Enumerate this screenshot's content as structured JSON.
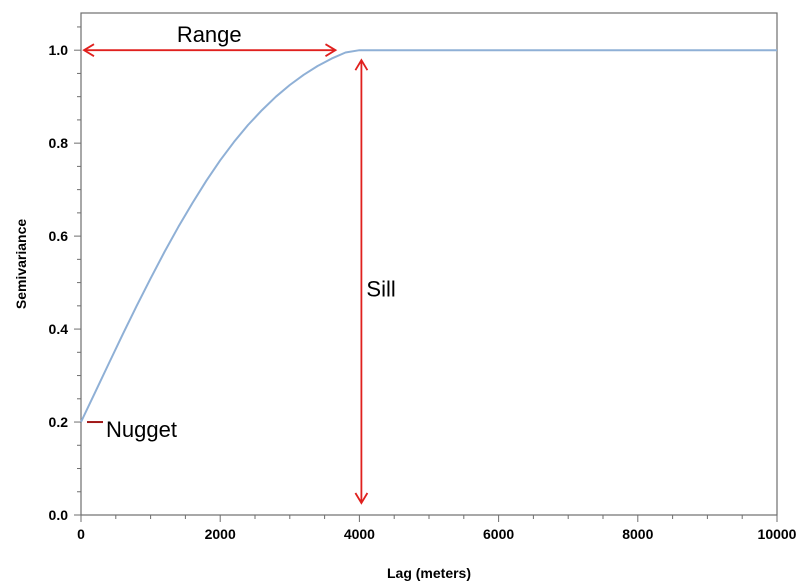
{
  "chart_data": {
    "type": "line",
    "xlabel": "Lag (meters)",
    "ylabel": "Semivariance",
    "xlim": [
      0,
      10000
    ],
    "ylim": [
      0,
      1.08
    ],
    "x_ticks": [
      0,
      2000,
      4000,
      6000,
      8000,
      10000
    ],
    "x_tick_labels": [
      "0",
      "2000",
      "4000",
      "6000",
      "8000",
      "10000"
    ],
    "y_ticks": [
      0,
      0.2,
      0.4,
      0.6,
      0.8,
      1.0
    ],
    "y_tick_labels": [
      "0.0",
      "0.2",
      "0.4",
      "0.6",
      "0.8",
      "1.0"
    ],
    "grid": false,
    "series": [
      {
        "color": "#8fb0d6",
        "x": [
          0,
          200,
          400,
          600,
          800,
          1000,
          1200,
          1400,
          1600,
          1800,
          2000,
          2200,
          2400,
          2600,
          2800,
          3000,
          3200,
          3400,
          3600,
          3800,
          4000,
          6000,
          8000,
          10000
        ],
        "y": [
          0.2,
          0.263,
          0.326,
          0.389,
          0.45,
          0.509,
          0.566,
          0.62,
          0.671,
          0.719,
          0.763,
          0.803,
          0.839,
          0.871,
          0.9,
          0.925,
          0.947,
          0.966,
          0.982,
          0.995,
          1.0,
          1.0,
          1.0,
          1.0
        ]
      }
    ],
    "annotations": {
      "range_label": "Range",
      "sill_label": "Sill",
      "nugget_label": "Nugget",
      "arrow_color": "#e0201e",
      "nugget_mark_color": "#a01818",
      "range_from_x": 0,
      "range_to_x": 3800,
      "range_y": 1.0,
      "sill_x": 4000,
      "sill_from_y": 0,
      "sill_to_y": 1.0,
      "nugget_y": 0.2
    }
  }
}
